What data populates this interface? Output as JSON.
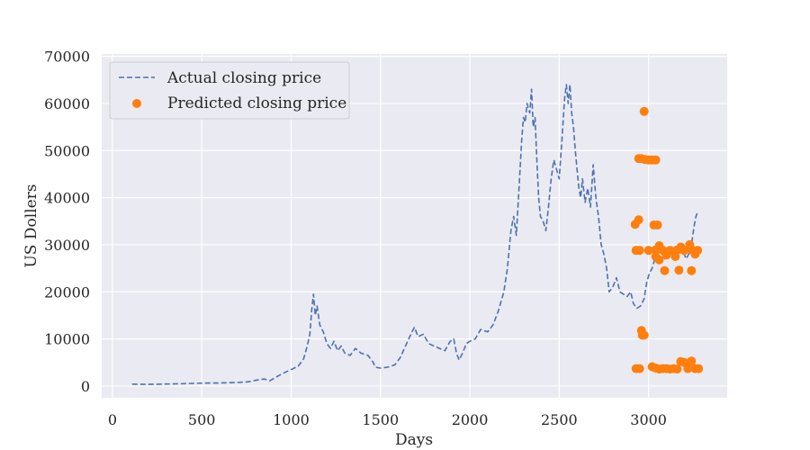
{
  "chart_data": {
    "type": "line",
    "title": "",
    "xlabel": "Days",
    "ylabel": "US Dollers",
    "xlim": [
      -60,
      3440
    ],
    "ylim": [
      -2500,
      70500
    ],
    "xticks": [
      0,
      500,
      1000,
      1500,
      2000,
      2500,
      3000
    ],
    "yticks": [
      0,
      10000,
      20000,
      30000,
      40000,
      50000,
      60000,
      70000
    ],
    "grid": true,
    "legend_position": "top-left",
    "colors": {
      "background": "#eaeaf2",
      "grid": "#ffffff",
      "actual": "#4c72b0",
      "predicted": "#ff7f0e",
      "text": "#262626"
    },
    "series": [
      {
        "name": "Actual closing price",
        "style": "dashed-line",
        "points": [
          [
            110,
            400
          ],
          [
            200,
            350
          ],
          [
            300,
            420
          ],
          [
            400,
            500
          ],
          [
            500,
            620
          ],
          [
            600,
            650
          ],
          [
            700,
            750
          ],
          [
            760,
            900
          ],
          [
            800,
            1200
          ],
          [
            850,
            1500
          ],
          [
            880,
            1100
          ],
          [
            920,
            2000
          ],
          [
            960,
            2800
          ],
          [
            1000,
            3500
          ],
          [
            1040,
            4200
          ],
          [
            1070,
            5800
          ],
          [
            1090,
            8500
          ],
          [
            1105,
            11000
          ],
          [
            1115,
            16000
          ],
          [
            1125,
            19500
          ],
          [
            1135,
            15000
          ],
          [
            1145,
            17000
          ],
          [
            1160,
            13000
          ],
          [
            1180,
            11500
          ],
          [
            1200,
            9000
          ],
          [
            1220,
            8000
          ],
          [
            1240,
            9500
          ],
          [
            1260,
            7500
          ],
          [
            1280,
            8500
          ],
          [
            1300,
            7000
          ],
          [
            1330,
            6500
          ],
          [
            1360,
            8000
          ],
          [
            1390,
            7000
          ],
          [
            1430,
            6500
          ],
          [
            1460,
            5000
          ],
          [
            1470,
            4000
          ],
          [
            1500,
            3800
          ],
          [
            1540,
            4000
          ],
          [
            1580,
            4500
          ],
          [
            1610,
            6000
          ],
          [
            1640,
            8500
          ],
          [
            1670,
            11000
          ],
          [
            1690,
            12500
          ],
          [
            1710,
            10500
          ],
          [
            1740,
            11000
          ],
          [
            1770,
            9000
          ],
          [
            1800,
            8500
          ],
          [
            1830,
            8000
          ],
          [
            1860,
            7500
          ],
          [
            1890,
            9500
          ],
          [
            1910,
            10000
          ],
          [
            1925,
            7000
          ],
          [
            1940,
            5500
          ],
          [
            1960,
            7000
          ],
          [
            1980,
            9000
          ],
          [
            2000,
            9500
          ],
          [
            2030,
            10000
          ],
          [
            2060,
            12000
          ],
          [
            2100,
            11500
          ],
          [
            2130,
            13000
          ],
          [
            2160,
            16000
          ],
          [
            2190,
            20000
          ],
          [
            2210,
            25000
          ],
          [
            2230,
            33000
          ],
          [
            2245,
            36000
          ],
          [
            2260,
            32000
          ],
          [
            2275,
            42000
          ],
          [
            2290,
            52000
          ],
          [
            2300,
            57000
          ],
          [
            2310,
            56000
          ],
          [
            2320,
            60000
          ],
          [
            2335,
            58000
          ],
          [
            2345,
            63000
          ],
          [
            2355,
            55000
          ],
          [
            2365,
            57000
          ],
          [
            2375,
            48000
          ],
          [
            2385,
            40000
          ],
          [
            2395,
            36000
          ],
          [
            2410,
            35000
          ],
          [
            2425,
            33000
          ],
          [
            2440,
            38000
          ],
          [
            2455,
            44000
          ],
          [
            2470,
            48000
          ],
          [
            2485,
            46000
          ],
          [
            2500,
            44000
          ],
          [
            2515,
            52000
          ],
          [
            2530,
            61000
          ],
          [
            2540,
            64000
          ],
          [
            2550,
            60000
          ],
          [
            2560,
            64000
          ],
          [
            2570,
            58000
          ],
          [
            2580,
            55000
          ],
          [
            2590,
            50000
          ],
          [
            2600,
            46000
          ],
          [
            2610,
            42000
          ],
          [
            2620,
            40000
          ],
          [
            2630,
            44000
          ],
          [
            2645,
            39000
          ],
          [
            2660,
            42000
          ],
          [
            2675,
            38000
          ],
          [
            2690,
            47000
          ],
          [
            2705,
            40000
          ],
          [
            2720,
            36000
          ],
          [
            2735,
            30000
          ],
          [
            2750,
            28000
          ],
          [
            2765,
            25000
          ],
          [
            2780,
            20000
          ],
          [
            2800,
            21000
          ],
          [
            2820,
            23000
          ],
          [
            2840,
            20000
          ],
          [
            2860,
            19500
          ],
          [
            2880,
            19000
          ],
          [
            2900,
            20000
          ],
          [
            2915,
            17500
          ],
          [
            2935,
            16500
          ],
          [
            2955,
            17000
          ],
          [
            2975,
            18500
          ],
          [
            2990,
            22000
          ],
          [
            3005,
            24000
          ],
          [
            3020,
            25000
          ],
          [
            3035,
            27000
          ],
          [
            3050,
            28500
          ],
          [
            3070,
            30000
          ],
          [
            3090,
            27000
          ],
          [
            3110,
            28000
          ],
          [
            3130,
            29500
          ],
          [
            3150,
            27500
          ],
          [
            3170,
            28000
          ],
          [
            3190,
            29000
          ],
          [
            3210,
            27000
          ],
          [
            3225,
            28000
          ],
          [
            3240,
            30000
          ],
          [
            3255,
            34000
          ],
          [
            3265,
            36000
          ],
          [
            3275,
            37000
          ]
        ]
      },
      {
        "name": "Predicted closing price",
        "style": "scatter",
        "points": [
          [
            2975,
            58300
          ],
          [
            2945,
            48300
          ],
          [
            2960,
            48300
          ],
          [
            2980,
            48100
          ],
          [
            3000,
            48000
          ],
          [
            3020,
            48000
          ],
          [
            3040,
            48000
          ],
          [
            2925,
            34300
          ],
          [
            2945,
            35300
          ],
          [
            3030,
            34200
          ],
          [
            3050,
            34200
          ],
          [
            2930,
            28800
          ],
          [
            2950,
            28800
          ],
          [
            3000,
            28800
          ],
          [
            3040,
            28900
          ],
          [
            3080,
            28800
          ],
          [
            3120,
            28800
          ],
          [
            3160,
            28900
          ],
          [
            3200,
            28800
          ],
          [
            3240,
            29000
          ],
          [
            3275,
            28800
          ],
          [
            3060,
            29800
          ],
          [
            3180,
            29500
          ],
          [
            3230,
            30000
          ],
          [
            3040,
            27500
          ],
          [
            3100,
            27800
          ],
          [
            3150,
            27500
          ],
          [
            3260,
            28000
          ],
          [
            3060,
            26800
          ],
          [
            3090,
            24500
          ],
          [
            3170,
            24600
          ],
          [
            3240,
            24500
          ],
          [
            2960,
            11800
          ],
          [
            2965,
            10800
          ],
          [
            2975,
            10800
          ],
          [
            2930,
            3700
          ],
          [
            2950,
            3700
          ],
          [
            3020,
            4100
          ],
          [
            3040,
            3800
          ],
          [
            3060,
            3600
          ],
          [
            3080,
            3700
          ],
          [
            3100,
            3700
          ],
          [
            3120,
            3600
          ],
          [
            3140,
            3700
          ],
          [
            3160,
            3600
          ],
          [
            3180,
            5200
          ],
          [
            3200,
            5000
          ],
          [
            3220,
            3700
          ],
          [
            3240,
            5300
          ],
          [
            3260,
            3700
          ],
          [
            3280,
            3700
          ]
        ]
      }
    ]
  }
}
